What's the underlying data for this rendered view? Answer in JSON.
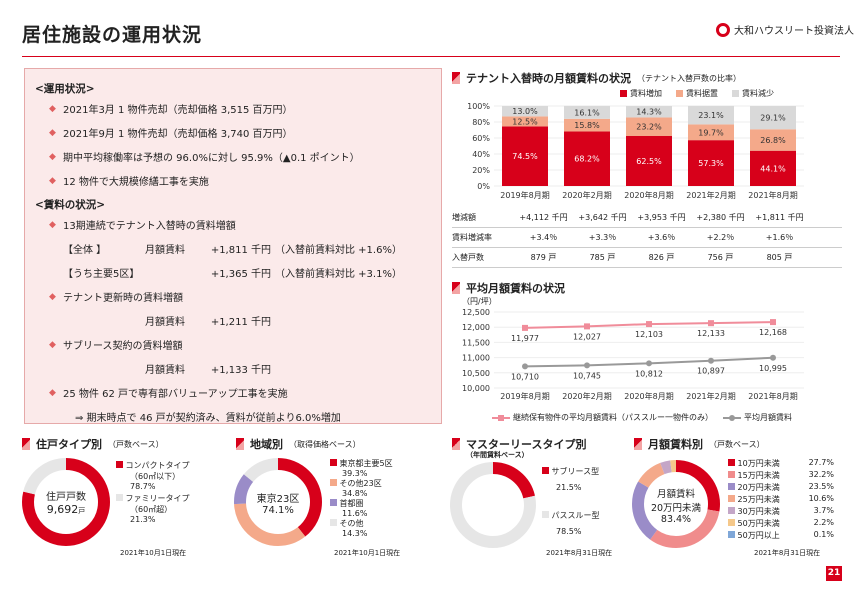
{
  "header": {
    "title": "居住施設の運用状況",
    "logo_text": "大和ハウスリート投資法人",
    "page": "21"
  },
  "ops": {
    "heading1": "<運用状況>",
    "bullets1": [
      "2021年3月  1 物件売却（売却価格  3,515 百万円）",
      "2021年9月  1 物件売却（売却価格  3,740 百万円）",
      "期中平均稼働率は予想の 96.0%に対し 95.9%（▲0.1 ポイント）",
      "12 物件で大規模修繕工事を実施"
    ],
    "heading2": "<賃料の状況>",
    "b_rent": "13期連続でテナント入替時の賃料増額",
    "rows1": [
      [
        "【全体 】",
        "月額賃料",
        "+1,811 千円",
        "（入替前賃料対比  +1.6%）"
      ],
      [
        "【うち主要5区】",
        "",
        "+1,365 千円",
        "（入替前賃料対比  +3.1%）"
      ]
    ],
    "b_renew": "テナント更新時の賃料増額",
    "row_renew": [
      "",
      "月額賃料",
      "+1,211 千円"
    ],
    "b_sublease": "サブリース契約の賃料増額",
    "row_sublease": [
      "",
      "月額賃料",
      "+1,133 千円"
    ],
    "b_value": "25 物件 62 戸で専有部バリューアップ工事を実施",
    "note": "⇒ 期末時点で 46 戸が契約済み、賃料が従前より6.0%増加"
  },
  "tenant_chart": {
    "title": "テナント入替時の月額賃料の状況",
    "subtitle": "（テナント入替戸数の比率）",
    "legend": [
      "賃料増加",
      "賃料据置",
      "賃料減少"
    ],
    "colors": [
      "#d7001a",
      "#f4a98a",
      "#d9d9d9"
    ],
    "yticks": [
      "100%",
      "80%",
      "60%",
      "40%",
      "20%",
      "0%"
    ],
    "table_labels": [
      "増減額",
      "賃料増減率",
      "入替戸数"
    ],
    "table": [
      [
        "+4,112 千円",
        "+3,642 千円",
        "+3,953 千円",
        "+2,380 千円",
        "+1,811 千円"
      ],
      [
        "+3.4％",
        "+3.3％",
        "+3.6％",
        "+2.2％",
        "+1.6％"
      ],
      [
        "879 戸",
        "785 戸",
        "826 戸",
        "756 戸",
        "805 戸"
      ]
    ]
  },
  "avg_chart": {
    "title": "平均月額賃料の状況",
    "unit": "（円/坪）",
    "yticks": [
      "12,500",
      "12,000",
      "11,500",
      "11,000",
      "10,500",
      "10,000"
    ],
    "legend": [
      "継続保有物件の平均月額賃料（パススルー一物件のみ）",
      "平均月額賃料"
    ]
  },
  "unit_type": {
    "title": "住戸タイプ別",
    "basis": "（戸数ベース）",
    "center1": "住戸戸数",
    "center2": "9,692",
    "center2_unit": "戸",
    "labels": [
      "コンパクトタイプ",
      "（60㎡以下）",
      "78.7%",
      "ファミリータイプ",
      "（60㎡超）",
      "21.3%"
    ],
    "date": "2021年10月1日現在"
  },
  "region": {
    "title": "地域別",
    "basis": "（取得価格ベース）",
    "center1": "東京23区",
    "center2": "74.1%",
    "labels": [
      [
        "東京都主要5区",
        "39.3%"
      ],
      [
        "その他23区",
        "34.8%"
      ],
      [
        "首都圏",
        "11.6%"
      ],
      [
        "その他",
        "14.3%"
      ]
    ],
    "date": "2021年10月1日現在"
  },
  "master": {
    "title": "マスターリースタイプ別",
    "basis": "（年間賃料ベース）",
    "labels": [
      [
        "サブリース型",
        "21.5%"
      ],
      [
        "パススルー型",
        "78.5%"
      ]
    ],
    "date": "2021年8月31日現在"
  },
  "rent_band": {
    "title": "月額賃料別",
    "basis": "（戸数ベース）",
    "center1": "月額賃料",
    "center2": "20万円未満",
    "center3": "83.4%",
    "labels": [
      [
        "10万円未満",
        "27.7%"
      ],
      [
        "15万円未満",
        "32.2%"
      ],
      [
        "20万円未満",
        "23.5%"
      ],
      [
        "25万円未満",
        "10.6%"
      ],
      [
        "30万円未満",
        "3.7%"
      ],
      [
        "50万円未満",
        "2.2%"
      ],
      [
        "50万円以上",
        "0.1%"
      ]
    ],
    "colors": [
      "#d7001a",
      "#f08c8c",
      "#9a8cc8",
      "#f4a98a",
      "#c4a6c7",
      "#f5c88a",
      "#7fa7d8"
    ],
    "date": "2021年8月31日現在"
  },
  "chart_data": [
    {
      "type": "bar",
      "stacked": true,
      "title": "テナント入替時の月額賃料の状況",
      "categories": [
        "2019年8月期",
        "2020年2月期",
        "2020年8月期",
        "2021年2月期",
        "2021年8月期"
      ],
      "series": [
        {
          "name": "賃料増加",
          "values": [
            74.5,
            68.2,
            62.5,
            57.3,
            44.1
          ]
        },
        {
          "name": "賃料据置",
          "values": [
            12.5,
            15.8,
            23.2,
            19.7,
            26.8
          ]
        },
        {
          "name": "賃料減少",
          "values": [
            13.0,
            16.1,
            14.3,
            23.1,
            29.1
          ]
        }
      ],
      "ylim": [
        0,
        100
      ]
    },
    {
      "type": "line",
      "title": "平均月額賃料の状況",
      "categories": [
        "2019年8月期",
        "2020年2月期",
        "2020年8月期",
        "2021年2月期",
        "2021年8月期"
      ],
      "series": [
        {
          "name": "継続保有物件の平均月額賃料（パススルー一物件のみ）",
          "values": [
            11977,
            12027,
            12103,
            12133,
            12168
          ]
        },
        {
          "name": "平均月額賃料",
          "values": [
            10710,
            10745,
            10812,
            10897,
            10995
          ]
        }
      ],
      "ylim": [
        10000,
        12500
      ]
    },
    {
      "type": "pie",
      "title": "住戸タイプ別",
      "labels": [
        "コンパクトタイプ",
        "ファミリータイプ"
      ],
      "values": [
        78.7,
        21.3
      ]
    },
    {
      "type": "pie",
      "title": "地域別",
      "labels": [
        "東京都主要5区",
        "その他23区",
        "首都圏",
        "その他"
      ],
      "values": [
        39.3,
        34.8,
        11.6,
        14.3
      ]
    },
    {
      "type": "pie",
      "title": "マスターリースタイプ別",
      "labels": [
        "サブリース型",
        "パススルー型"
      ],
      "values": [
        21.5,
        78.5
      ]
    },
    {
      "type": "pie",
      "title": "月額賃料別",
      "labels": [
        "10万円未満",
        "15万円未満",
        "20万円未満",
        "25万円未満",
        "30万円未満",
        "50万円未満",
        "50万円以上"
      ],
      "values": [
        27.7,
        32.2,
        23.5,
        10.6,
        3.7,
        2.2,
        0.1
      ]
    }
  ]
}
